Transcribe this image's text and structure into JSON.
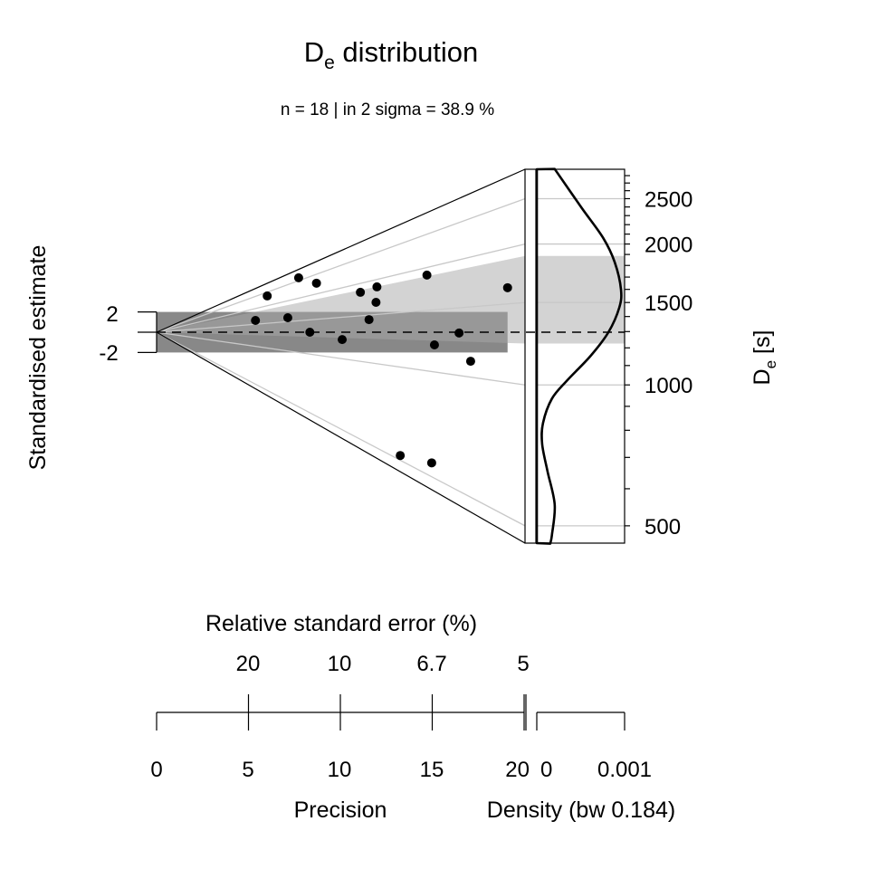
{
  "chart_data": {
    "type": "scatter",
    "subtype": "abanico plot",
    "title": {
      "main": "D",
      "sub": "e",
      "rest": " distribution"
    },
    "subtitle": "n = 18 | in 2 sigma = 38.9 %",
    "ylabel": "Standardised estimate",
    "y_ticks": [
      "2",
      "-2"
    ],
    "y_tick_values": [
      2,
      -2
    ],
    "x_label_precision": "Precision",
    "x_ticks_precision": [
      "0",
      "5",
      "10",
      "15",
      "20"
    ],
    "x_tick_values_precision": [
      0,
      5,
      10,
      15,
      20
    ],
    "x_label_rse": "Relative standard error (%)",
    "x_ticks_rse": [
      "20",
      "10",
      "6.7",
      "5"
    ],
    "x_label_density": "Density (bw 0.184)",
    "x_ticks_density": [
      "0",
      "0.001"
    ],
    "x_tick_values_density": [
      0,
      0.001
    ],
    "z_label": {
      "main": "D",
      "sub": "e",
      "rest": " [s]"
    },
    "z_ticks": [
      "2500",
      "2000",
      "1500",
      "1000",
      "500"
    ],
    "z_tick_values": [
      2500,
      2000,
      1500,
      1000,
      500
    ],
    "z_scale": "log",
    "z_range": [
      458,
      2893
    ],
    "central_value": 1296,
    "two_sigma_band_z": [
      -2,
      2
    ],
    "highlight_band_de": [
      1226,
      1886
    ],
    "points": [
      {
        "de": 2349,
        "precision": 6.02
      },
      {
        "de": 2596,
        "precision": 7.73
      },
      {
        "de": 2260,
        "precision": 8.7
      },
      {
        "de": 1608,
        "precision": 5.38
      },
      {
        "de": 1583,
        "precision": 7.14
      },
      {
        "de": 1296,
        "precision": 8.34
      },
      {
        "de": 1206,
        "precision": 10.1
      },
      {
        "de": 1848,
        "precision": 11.09
      },
      {
        "de": 1882,
        "precision": 11.99
      },
      {
        "de": 1659,
        "precision": 11.94
      },
      {
        "de": 1443,
        "precision": 11.56
      },
      {
        "de": 1901,
        "precision": 14.71
      },
      {
        "de": 1290,
        "precision": 16.46
      },
      {
        "de": 1193,
        "precision": 15.12
      },
      {
        "de": 1096,
        "precision": 17.09
      },
      {
        "de": 1631,
        "precision": 19.1
      },
      {
        "de": 518,
        "precision": 13.26
      },
      {
        "de": 548,
        "precision": 14.97
      }
    ],
    "density_curve": [
      {
        "de": 2893,
        "density": 0.000204
      },
      {
        "de": 2391,
        "density": 0.00051
      },
      {
        "de": 2062,
        "density": 0.000755
      },
      {
        "de": 1828,
        "density": 0.000888
      },
      {
        "de": 1599,
        "density": 0.000959
      },
      {
        "de": 1462,
        "density": 0.000939
      },
      {
        "de": 1296,
        "density": 0.000816
      },
      {
        "de": 1153,
        "density": 0.000612
      },
      {
        "de": 1023,
        "density": 0.000347
      },
      {
        "de": 935,
        "density": 0.000173
      },
      {
        "de": 829,
        "density": 7.1e-05
      },
      {
        "de": 748,
        "density": 6.1e-05
      },
      {
        "de": 654,
        "density": 0.000122
      },
      {
        "de": 555,
        "density": 0.000204
      },
      {
        "de": 479,
        "density": 0.000173
      },
      {
        "de": 458,
        "density": 0.000153
      }
    ],
    "colors": {
      "points": "#000000",
      "two_sigma_band": "#888888",
      "highlight_band": "#a8a8a8",
      "reference_lines": "#c8c8c8",
      "density_line": "#000000"
    },
    "grid": false,
    "legend": "none"
  }
}
